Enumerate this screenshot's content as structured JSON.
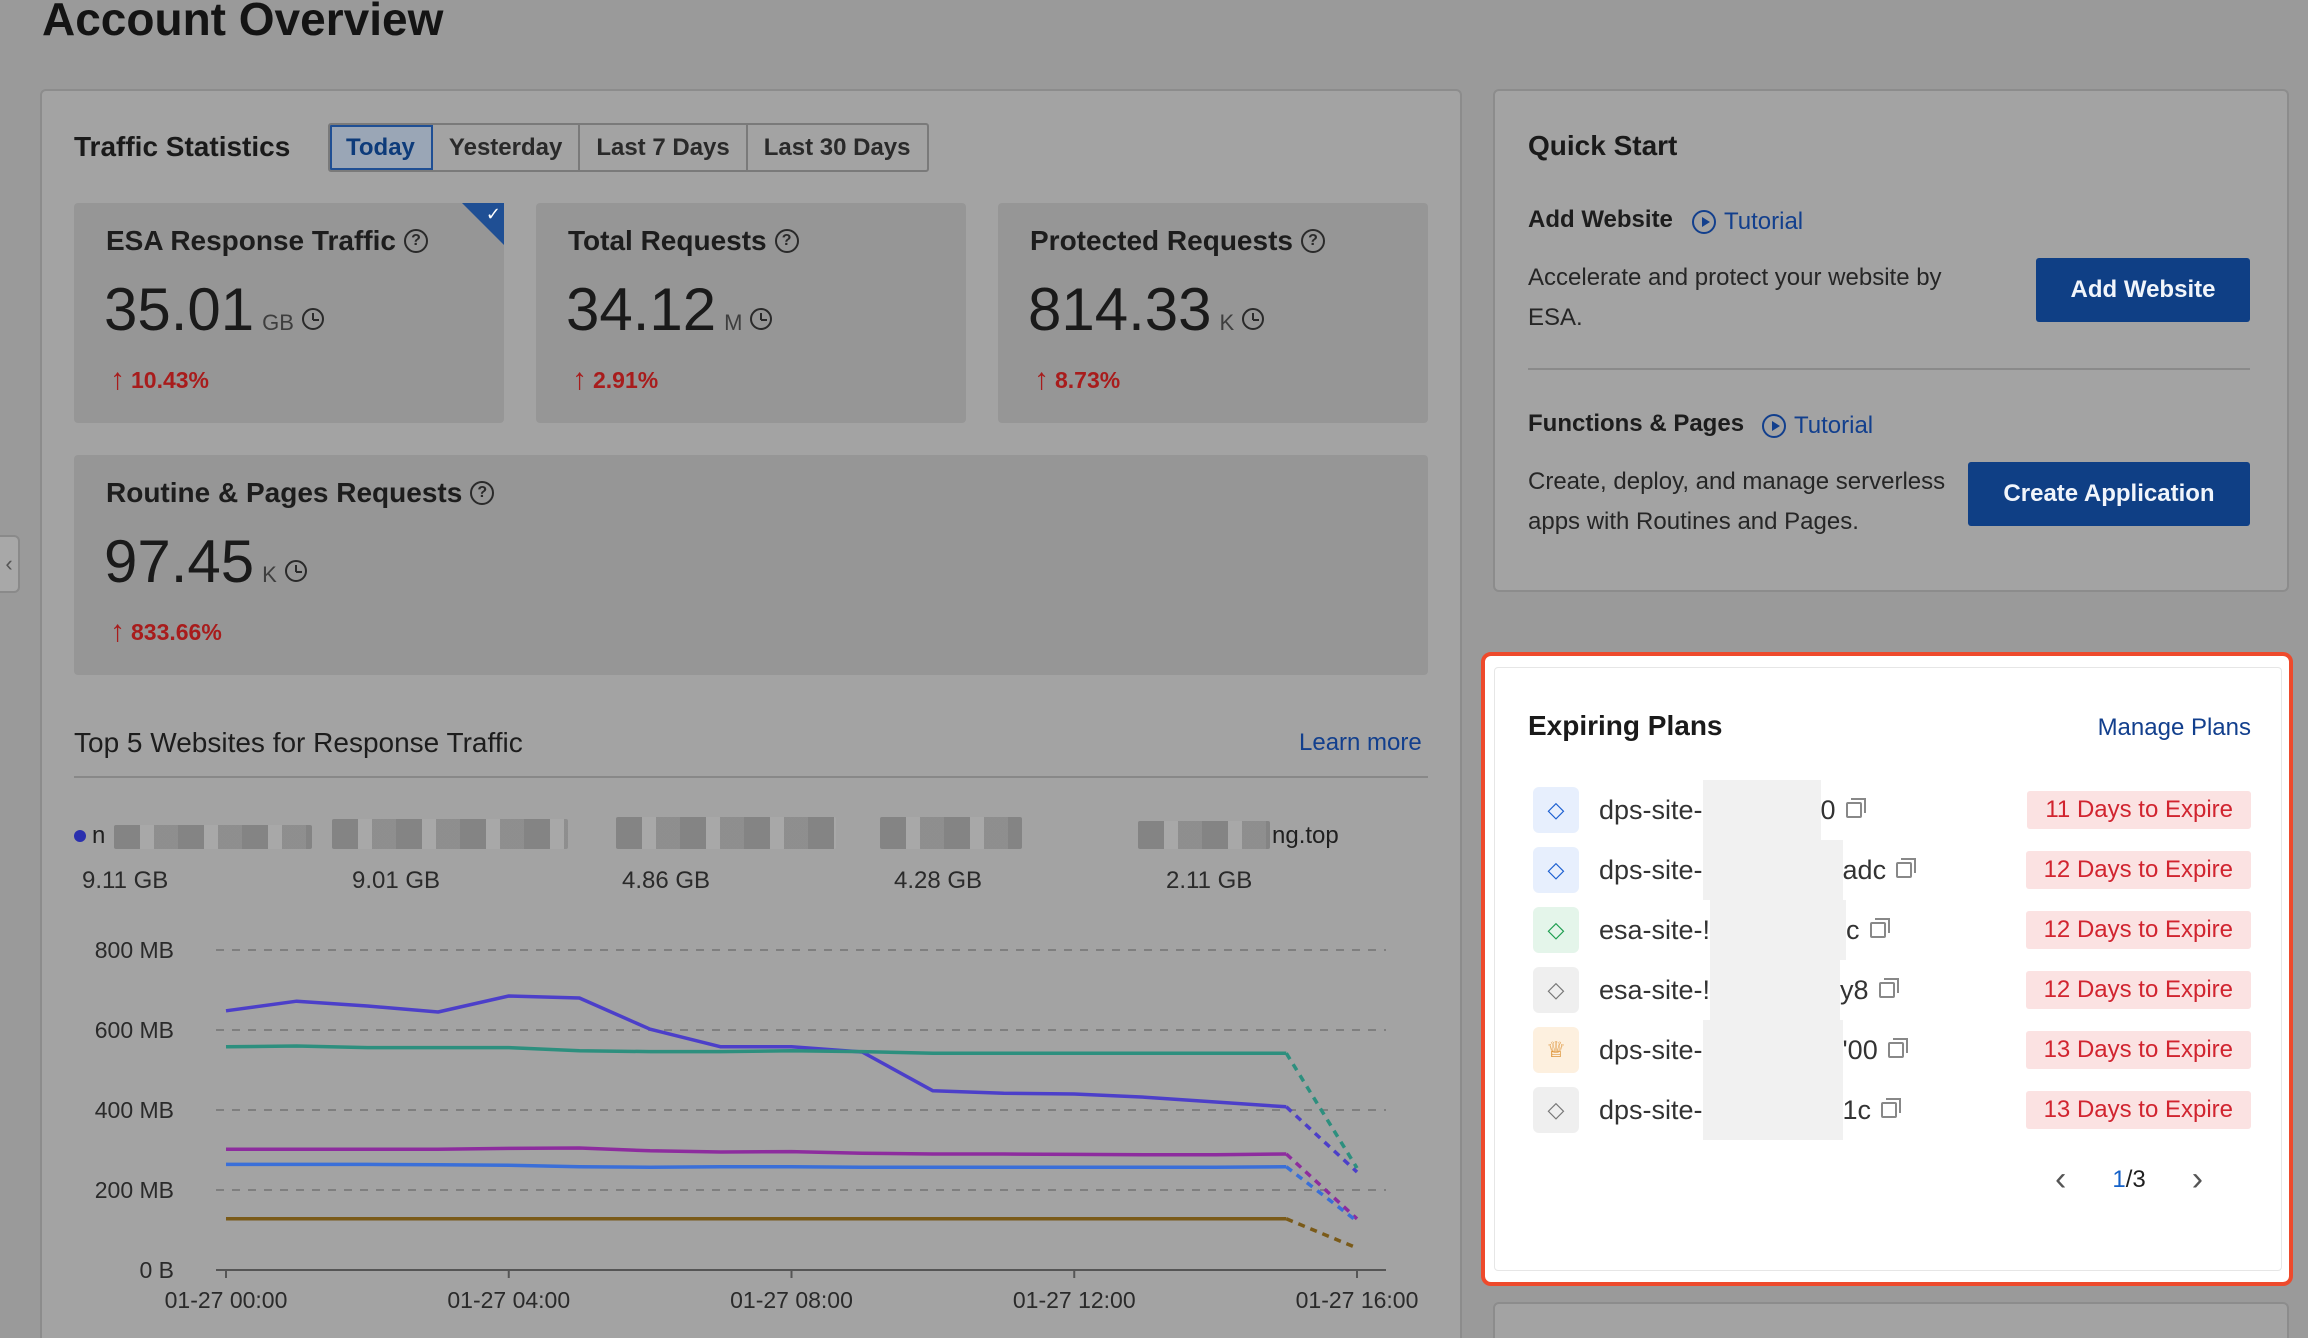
{
  "page": {
    "title": "Account Overview"
  },
  "traffic": {
    "title": "Traffic Statistics",
    "tabs": [
      "Today",
      "Yesterday",
      "Last 7 Days",
      "Last 30 Days"
    ],
    "active_tab": "Today",
    "stats": [
      {
        "title": "ESA Response Traffic",
        "value": "35.01",
        "unit": "GB",
        "change": "10.43%",
        "selected": true
      },
      {
        "title": "Total Requests",
        "value": "34.12",
        "unit": "M",
        "change": "2.91%"
      },
      {
        "title": "Protected Requests",
        "value": "814.33",
        "unit": "K",
        "change": "8.73%"
      },
      {
        "title": "Routine & Pages Requests",
        "value": "97.45",
        "unit": "K",
        "change": "833.66%"
      }
    ],
    "top_sites": {
      "title": "Top 5 Websites for Response Traffic",
      "learn_more": "Learn more",
      "sites": [
        {
          "name_prefix": "n",
          "name_suffix": "",
          "value": "9.11 GB"
        },
        {
          "name_prefix": "",
          "name_suffix": "",
          "value": "9.01 GB"
        },
        {
          "name_prefix": "",
          "name_suffix": "",
          "value": "4.86 GB"
        },
        {
          "name_prefix": "",
          "name_suffix": "",
          "value": "4.28 GB"
        },
        {
          "name_prefix": "",
          "name_suffix": "ng.top",
          "value": "2.11 GB"
        }
      ]
    }
  },
  "chart_data": {
    "type": "line",
    "title": "",
    "ylabel": "",
    "xlabel": "",
    "x_ticks": [
      "01-27 00:00",
      "01-27 04:00",
      "01-27 08:00",
      "01-27 12:00",
      "01-27 16:00"
    ],
    "y_ticks": [
      "0 B",
      "200 MB",
      "400 MB",
      "600 MB",
      "800 MB"
    ],
    "ylim": [
      0,
      800
    ],
    "x_hours": [
      0,
      1,
      2,
      3,
      4,
      5,
      6,
      7,
      8,
      9,
      10,
      11,
      12,
      13,
      14,
      15,
      16
    ],
    "series": [
      {
        "color": "#4c3fc9",
        "values": [
          648,
          672,
          660,
          645,
          685,
          680,
          602,
          558,
          558,
          545,
          448,
          442,
          440,
          432,
          420,
          408,
          245
        ]
      },
      {
        "color": "#2d8f7e",
        "values": [
          558,
          560,
          556,
          556,
          556,
          548,
          546,
          546,
          548,
          546,
          542,
          542,
          542,
          542,
          542,
          542,
          255
        ]
      },
      {
        "color": "#8d2c9e",
        "values": [
          302,
          302,
          302,
          302,
          304,
          305,
          298,
          295,
          296,
          292,
          290,
          290,
          289,
          288,
          288,
          290,
          128
        ]
      },
      {
        "color": "#3a6fd8",
        "values": [
          264,
          264,
          264,
          263,
          262,
          258,
          257,
          258,
          258,
          257,
          257,
          257,
          257,
          257,
          257,
          258,
          122
        ]
      },
      {
        "color": "#7a5a18",
        "values": [
          128,
          128,
          128,
          128,
          128,
          128,
          128,
          128,
          128,
          128,
          128,
          128,
          128,
          128,
          128,
          128,
          55
        ]
      }
    ],
    "forecast_from_index": 15,
    "grid": true
  },
  "quick_start": {
    "title": "Quick Start",
    "add_website": {
      "title": "Add Website",
      "tutorial": "Tutorial",
      "description": "Accelerate and protect your website by ESA.",
      "button": "Add Website"
    },
    "functions": {
      "title": "Functions & Pages",
      "tutorial": "Tutorial",
      "description": "Create, deploy, and manage serverless apps with Routines and Pages.",
      "button": "Create Application"
    }
  },
  "plans": {
    "title": "Expiring Plans",
    "manage_link": "Manage Plans",
    "items": [
      {
        "prefix": "dps-site-",
        "suffix": "0",
        "expire": "11 Days to Expire",
        "icon": "diamond",
        "icon_color": "#1c5fd0",
        "icon_bg": "#e7effd"
      },
      {
        "prefix": "dps-site-",
        "suffix": "adc",
        "expire": "12 Days to Expire",
        "icon": "diamond",
        "icon_color": "#1c5fd0",
        "icon_bg": "#e7effd"
      },
      {
        "prefix": "esa-site-!",
        "suffix": "c",
        "expire": "12 Days to Expire",
        "icon": "diamond",
        "icon_color": "#1e9e4f",
        "icon_bg": "#e4f5ea"
      },
      {
        "prefix": "esa-site-!",
        "suffix": "y8",
        "expire": "12 Days to Expire",
        "icon": "diamond",
        "icon_color": "#777777",
        "icon_bg": "#efefef"
      },
      {
        "prefix": "dps-site-",
        "suffix": "'00",
        "expire": "13 Days to Expire",
        "icon": "crown",
        "icon_color": "#d8831b",
        "icon_bg": "#fdf0df"
      },
      {
        "prefix": "dps-site-",
        "suffix": "1c",
        "expire": "13 Days to Expire",
        "icon": "diamond",
        "icon_color": "#777777",
        "icon_bg": "#efefef"
      }
    ],
    "pagination": {
      "current": "1",
      "total": "3"
    }
  }
}
